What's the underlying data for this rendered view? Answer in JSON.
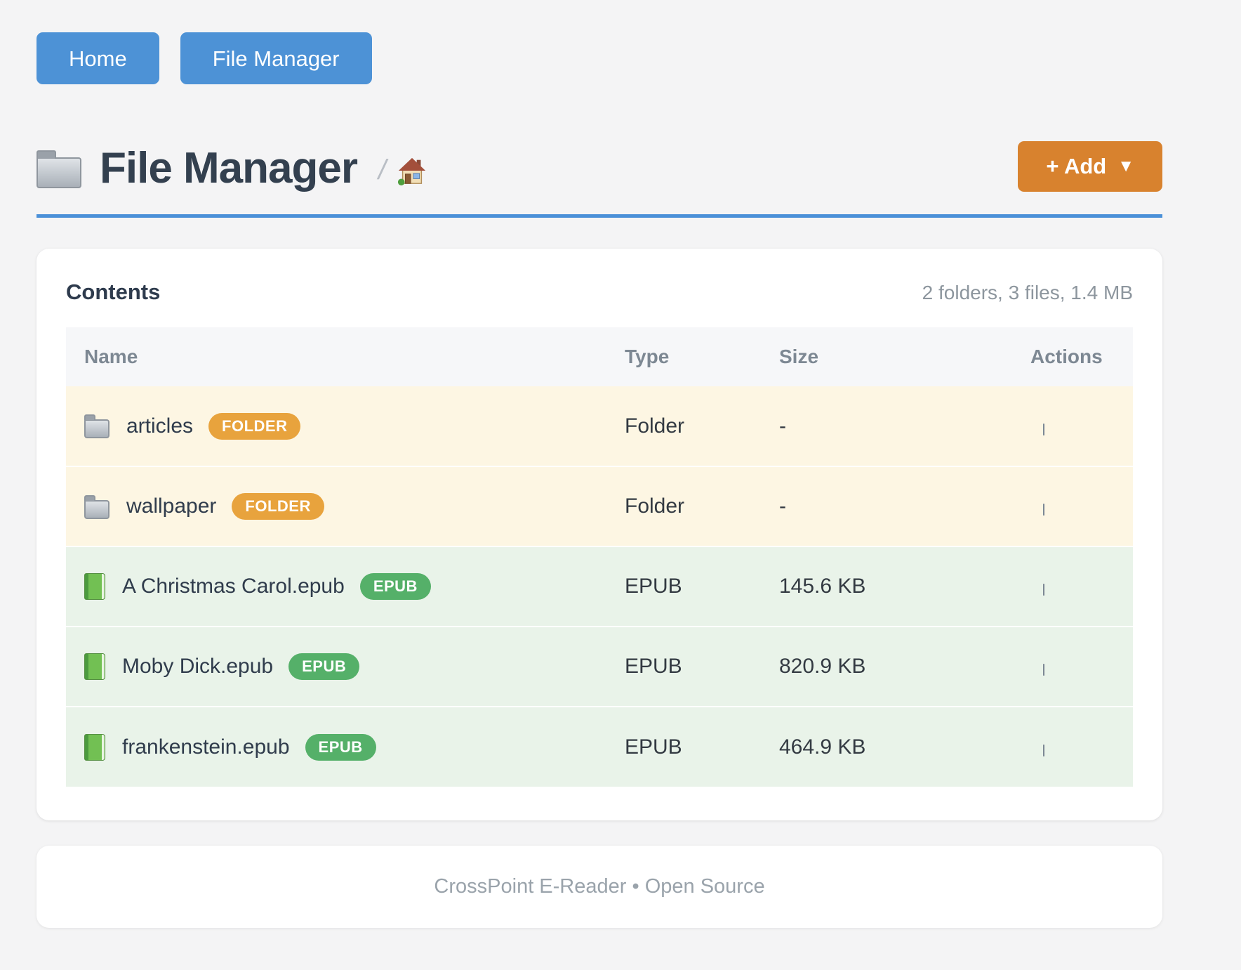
{
  "nav": {
    "buttons": [
      {
        "label": "Home"
      },
      {
        "label": "File Manager"
      }
    ]
  },
  "header": {
    "title": "File Manager",
    "title_icon": "folder-icon",
    "breadcrumb_separator": "/",
    "breadcrumb_home_icon": "home-icon",
    "add_button": {
      "label": "+ Add",
      "caret": "▼"
    }
  },
  "colors": {
    "primary_blue": "#4d92d6",
    "divider_blue": "#4a90d8",
    "accent_orange": "#d8822e",
    "badge_orange": "#e8a33d",
    "badge_green": "#55b069",
    "folder_row_bg": "#fdf6e3",
    "file_row_bg": "#e9f3e9"
  },
  "contents_card": {
    "title": "Contents",
    "summary": "2 folders, 3 files, 1.4 MB",
    "table": {
      "columns": [
        "Name",
        "Type",
        "Size",
        "Actions"
      ],
      "rows": [
        {
          "name": "articles",
          "icon": "folder-icon",
          "badge": "FOLDER",
          "type": "Folder",
          "size": "-",
          "kind": "folder",
          "action_icon": "trash-icon"
        },
        {
          "name": "wallpaper",
          "icon": "folder-icon",
          "badge": "FOLDER",
          "type": "Folder",
          "size": "-",
          "kind": "folder",
          "action_icon": "trash-icon"
        },
        {
          "name": "A Christmas Carol.epub",
          "icon": "book-icon",
          "badge": "EPUB",
          "type": "EPUB",
          "size": "145.6 KB",
          "kind": "file",
          "action_icon": "trash-icon"
        },
        {
          "name": "Moby Dick.epub",
          "icon": "book-icon",
          "badge": "EPUB",
          "type": "EPUB",
          "size": "820.9 KB",
          "kind": "file",
          "action_icon": "trash-icon"
        },
        {
          "name": "frankenstein.epub",
          "icon": "book-icon",
          "badge": "EPUB",
          "type": "EPUB",
          "size": "464.9 KB",
          "kind": "file",
          "action_icon": "trash-icon"
        }
      ]
    }
  },
  "footer": {
    "text": "CrossPoint E-Reader • Open Source"
  }
}
